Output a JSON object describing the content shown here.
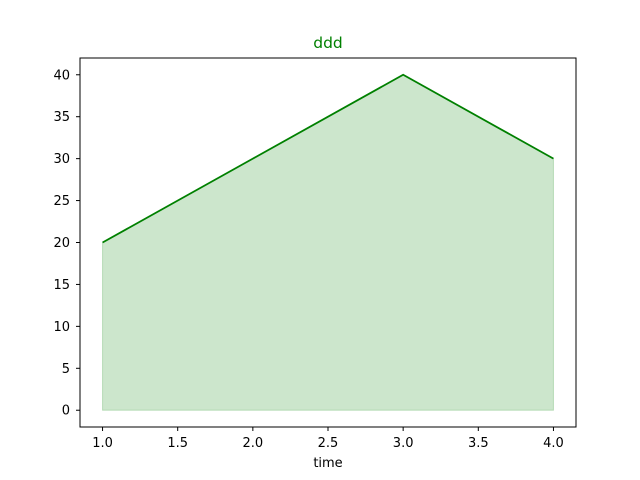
{
  "chart_data": {
    "type": "area",
    "title": "ddd",
    "xlabel": "time",
    "ylabel": "",
    "x": [
      1.0,
      2.0,
      3.0,
      4.0
    ],
    "series": [
      {
        "values": [
          20,
          30,
          40,
          30
        ]
      }
    ],
    "xlim": [
      0.85,
      4.15
    ],
    "ylim": [
      -2,
      42
    ],
    "xticks": [
      1.0,
      1.5,
      2.0,
      2.5,
      3.0,
      3.5,
      4.0
    ],
    "xtick_labels": [
      "1.0",
      "1.5",
      "2.0",
      "2.5",
      "3.0",
      "3.5",
      "4.0"
    ],
    "yticks": [
      0,
      5,
      10,
      15,
      20,
      25,
      30,
      35,
      40
    ],
    "ytick_labels": [
      "0",
      "5",
      "10",
      "15",
      "20",
      "25",
      "30",
      "35",
      "40"
    ],
    "grid": false,
    "colors": {
      "line": "#008000",
      "fill": "#008000",
      "title": "#008000",
      "axes": "#000000"
    }
  }
}
